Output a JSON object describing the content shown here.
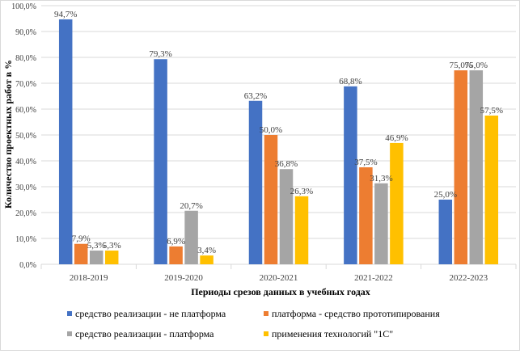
{
  "chart_data": {
    "type": "bar",
    "title": "",
    "xlabel": "Периоды  срезов данных  в учебных  годах",
    "ylabel": "Количество проектных работ в %",
    "ylim": [
      0,
      100
    ],
    "yticks": [
      "0,0%",
      "10,0%",
      "20,0%",
      "30,0%",
      "40,0%",
      "50,0%",
      "60,0%",
      "70,0%",
      "80,0%",
      "90,0%",
      "100,0%"
    ],
    "grid": true,
    "legend_position": "bottom",
    "categories": [
      "2018-2019",
      "2019-2020",
      "2020-2021",
      "2021-2022",
      "2022-2023"
    ],
    "series": [
      {
        "name": "средство реализации - не платформа",
        "color": "#4472C4",
        "values": [
          94.7,
          79.3,
          63.2,
          68.8,
          25.0
        ],
        "labels": [
          "94,7%",
          "79,3%",
          "63,2%",
          "68,8%",
          "25,0%"
        ]
      },
      {
        "name": "платформа - средство прототипирования",
        "color": "#ED7D31",
        "values": [
          7.9,
          6.9,
          50.0,
          37.5,
          75.0
        ],
        "labels": [
          "7,9%",
          "6,9%",
          "50,0%",
          "37,5%",
          "75,0%"
        ]
      },
      {
        "name": "средство реализации -  платформа",
        "color": "#A5A5A5",
        "values": [
          5.3,
          20.7,
          36.8,
          31.3,
          75.0
        ],
        "labels": [
          "5,3%",
          "20,7%",
          "36,8%",
          "31,3%",
          "75,0%"
        ]
      },
      {
        "name": "применения технологий  \"1С\"",
        "color": "#FFC000",
        "values": [
          5.3,
          3.4,
          26.3,
          46.9,
          57.5
        ],
        "labels": [
          "5,3%",
          "3,4%",
          "26,3%",
          "46,9%",
          "57,5%"
        ]
      }
    ]
  }
}
